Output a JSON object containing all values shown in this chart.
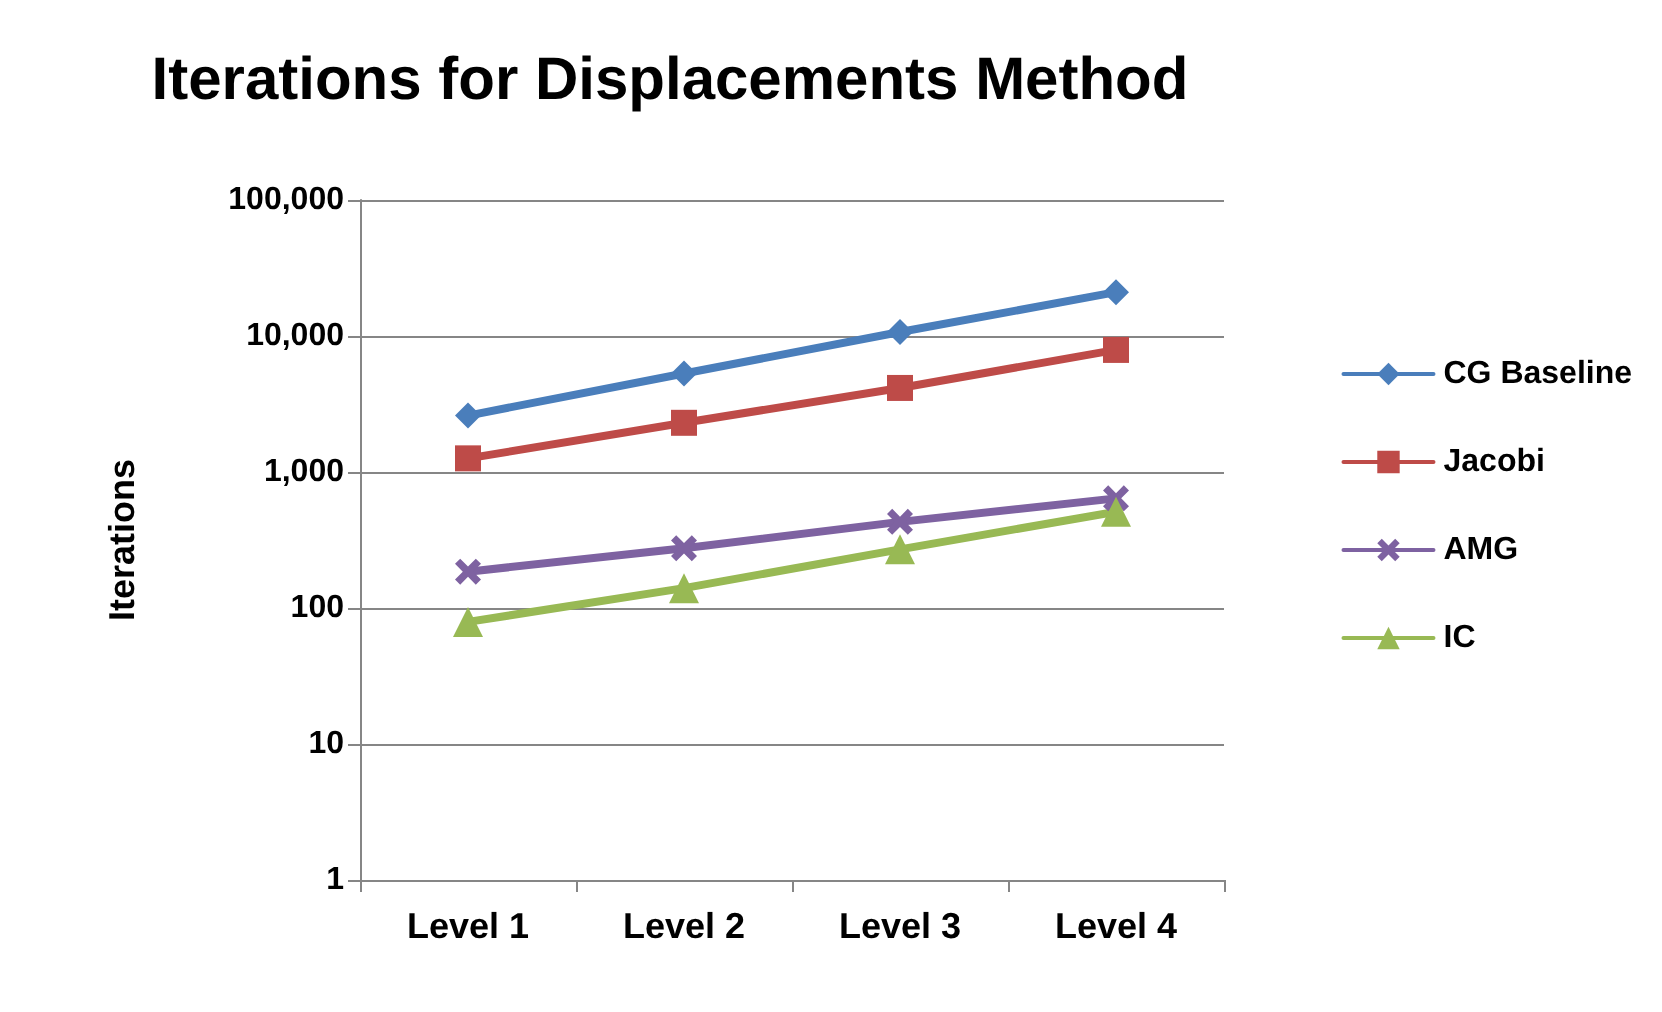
{
  "chart_data": {
    "type": "line",
    "title": "Iterations for Displacements Method",
    "ylabel": "Iterations",
    "categories": [
      "Level 1",
      "Level 2",
      "Level 3",
      "Level 4"
    ],
    "series": [
      {
        "name": "CG Baseline",
        "color": "#4a7ebb",
        "marker": "diamond",
        "values": [
          2600,
          5300,
          10700,
          21000
        ]
      },
      {
        "name": "Jacobi",
        "color": "#be4b48",
        "marker": "square",
        "values": [
          1260,
          2300,
          4150,
          7900
        ]
      },
      {
        "name": "AMG",
        "color": "#7e62a1",
        "marker": "cross",
        "values": [
          185,
          275,
          430,
          640
        ]
      },
      {
        "name": "IC",
        "color": "#98b954",
        "marker": "triangle",
        "values": [
          79,
          140,
          270,
          510
        ]
      }
    ],
    "log": "y",
    "ylim": [
      1,
      100000
    ],
    "yticks": [
      1,
      10,
      100,
      {
        "value": 1000,
        "label": "1,000"
      },
      {
        "value": 10000,
        "label": "10,000"
      },
      {
        "value": 100000,
        "label": "100,000"
      }
    ],
    "grid": "y",
    "legend": "right",
    "line_style": "solid"
  }
}
